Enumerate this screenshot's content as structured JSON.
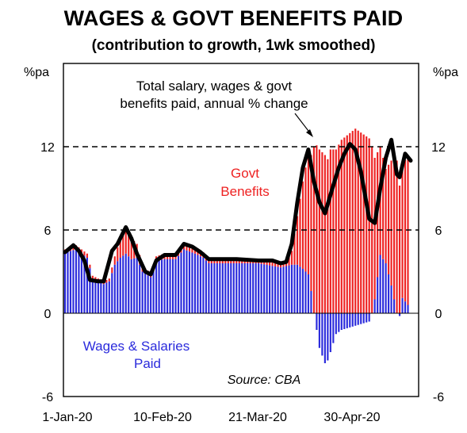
{
  "title": "WAGES & GOVT BENEFITS PAID",
  "subtitle": "(contribution to growth, 1wk smoothed)",
  "colors": {
    "wages": "#2b2bdc",
    "benefits": "#ee2222",
    "total": "#000000"
  },
  "chart_data": {
    "type": "bar",
    "stacked": true,
    "y_unit_left": "%pa",
    "y_unit_right": "%pa",
    "ylim": [
      -6,
      18
    ],
    "yticks": [
      12,
      6,
      0,
      -6
    ],
    "dashed_lines_at": [
      6,
      12
    ],
    "x_tick_labels": [
      "1-Jan-20",
      "10-Feb-20",
      "21-Mar-20",
      "30-Apr-20"
    ],
    "days": 125,
    "series": [
      {
        "name": "Wages & Salaries Paid",
        "component": "wages",
        "knots": [
          [
            0,
            4.4
          ],
          [
            4,
            4.6
          ],
          [
            8,
            4.0
          ],
          [
            10,
            2.5
          ],
          [
            14,
            2.1
          ],
          [
            16,
            2.3
          ],
          [
            18,
            3.5
          ],
          [
            20,
            4.0
          ],
          [
            22,
            4.3
          ],
          [
            24,
            3.9
          ],
          [
            26,
            4.0
          ],
          [
            28,
            3.0
          ],
          [
            31,
            2.6
          ],
          [
            33,
            3.8
          ],
          [
            36,
            3.9
          ],
          [
            40,
            3.9
          ],
          [
            43,
            4.6
          ],
          [
            47,
            4.3
          ],
          [
            50,
            4.0
          ],
          [
            52,
            3.6
          ],
          [
            60,
            3.6
          ],
          [
            70,
            3.6
          ],
          [
            78,
            3.3
          ],
          [
            80,
            3.4
          ],
          [
            82,
            3.5
          ],
          [
            84,
            3.5
          ],
          [
            86,
            3.2
          ],
          [
            88,
            2.8
          ],
          [
            89,
            1.6
          ],
          [
            90,
            0
          ],
          [
            91,
            -1.2
          ],
          [
            92,
            -2.5
          ],
          [
            94,
            -3.6
          ],
          [
            95,
            -3.4
          ],
          [
            96,
            -2.8
          ],
          [
            98,
            -1.5
          ],
          [
            100,
            -1.2
          ],
          [
            105,
            -0.9
          ],
          [
            110,
            -0.6
          ],
          [
            111,
            0
          ],
          [
            112,
            1.0
          ],
          [
            114,
            4.2
          ],
          [
            116,
            3.6
          ],
          [
            118,
            2.0
          ],
          [
            119,
            1.0
          ],
          [
            120,
            0
          ],
          [
            121,
            -0.2
          ],
          [
            122,
            1.1
          ],
          [
            124,
            0.6
          ]
        ]
      },
      {
        "name": "Govt Benefits",
        "component": "benefits",
        "knots": [
          [
            0,
            0.2
          ],
          [
            4,
            0.3
          ],
          [
            8,
            0.3
          ],
          [
            10,
            0.2
          ],
          [
            14,
            0.2
          ],
          [
            16,
            0.2
          ],
          [
            18,
            0.6
          ],
          [
            20,
            1.4
          ],
          [
            22,
            1.8
          ],
          [
            24,
            1.5
          ],
          [
            26,
            1.0
          ],
          [
            28,
            0.4
          ],
          [
            31,
            0.3
          ],
          [
            33,
            0.3
          ],
          [
            36,
            0.4
          ],
          [
            40,
            0.4
          ],
          [
            43,
            0.4
          ],
          [
            47,
            0.5
          ],
          [
            50,
            0.4
          ],
          [
            52,
            0.3
          ],
          [
            60,
            0.3
          ],
          [
            70,
            0.3
          ],
          [
            78,
            0.2
          ],
          [
            80,
            0.3
          ],
          [
            82,
            1.0
          ],
          [
            84,
            3.5
          ],
          [
            86,
            6.3
          ],
          [
            88,
            8.7
          ],
          [
            89,
            9.8
          ],
          [
            90,
            12.0
          ],
          [
            91,
            12.1
          ],
          [
            92,
            11.8
          ],
          [
            94,
            11.4
          ],
          [
            95,
            11.1
          ],
          [
            96,
            11.8
          ],
          [
            98,
            11.8
          ],
          [
            100,
            12.5
          ],
          [
            105,
            13.3
          ],
          [
            110,
            12.6
          ],
          [
            111,
            12.0
          ],
          [
            112,
            10.2
          ],
          [
            114,
            7.8
          ],
          [
            116,
            6.8
          ],
          [
            118,
            9.0
          ],
          [
            119,
            10.2
          ],
          [
            120,
            11.0
          ],
          [
            121,
            9.2
          ],
          [
            122,
            9.9
          ],
          [
            124,
            10.5
          ]
        ]
      },
      {
        "name": "Total salary, wages & govt benefits paid, annual % change",
        "component": "total",
        "knots": [
          [
            0,
            4.4
          ],
          [
            3,
            4.9
          ],
          [
            5,
            4.5
          ],
          [
            7,
            3.8
          ],
          [
            9,
            2.4
          ],
          [
            12,
            2.3
          ],
          [
            14,
            2.3
          ],
          [
            17,
            4.5
          ],
          [
            19,
            5.0
          ],
          [
            22,
            6.2
          ],
          [
            24,
            5.4
          ],
          [
            26,
            4.3
          ],
          [
            29,
            3.0
          ],
          [
            31,
            2.8
          ],
          [
            33,
            3.8
          ],
          [
            36,
            4.2
          ],
          [
            40,
            4.2
          ],
          [
            43,
            5.0
          ],
          [
            46,
            4.8
          ],
          [
            49,
            4.4
          ],
          [
            52,
            3.9
          ],
          [
            57,
            3.9
          ],
          [
            62,
            3.9
          ],
          [
            70,
            3.8
          ],
          [
            75,
            3.8
          ],
          [
            78,
            3.6
          ],
          [
            80,
            3.7
          ],
          [
            82,
            5.0
          ],
          [
            84,
            8.0
          ],
          [
            86,
            10.5
          ],
          [
            88,
            11.8
          ],
          [
            90,
            9.5
          ],
          [
            92,
            8.0
          ],
          [
            94,
            7.2
          ],
          [
            97,
            9.2
          ],
          [
            99,
            10.5
          ],
          [
            101,
            11.5
          ],
          [
            103,
            12.2
          ],
          [
            105,
            11.8
          ],
          [
            107,
            10.2
          ],
          [
            110,
            6.8
          ],
          [
            112,
            6.5
          ],
          [
            114,
            9.0
          ],
          [
            116,
            11.2
          ],
          [
            118,
            12.5
          ],
          [
            120,
            10.0
          ],
          [
            121,
            9.8
          ],
          [
            123,
            11.5
          ],
          [
            125,
            11.0
          ]
        ]
      }
    ],
    "annotations": {
      "total_label": [
        "Total salary, wages & govt",
        "benefits paid, annual % change"
      ],
      "benefits_label": [
        "Govt",
        "Benefits"
      ],
      "wages_label": [
        "Wages & Salaries",
        "Paid"
      ],
      "source": "Source: CBA"
    }
  }
}
